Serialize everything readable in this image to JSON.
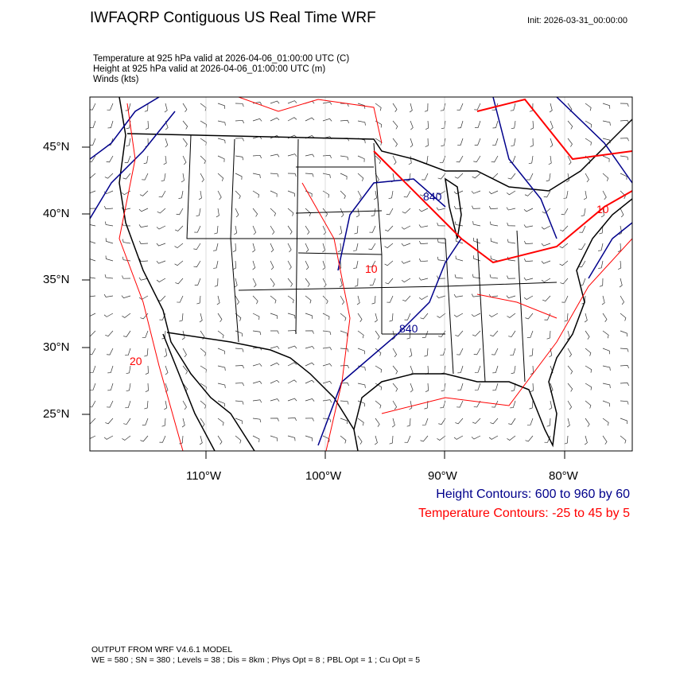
{
  "header": {
    "title": "IWFAQRP Contiguous US Real Time WRF",
    "init": "Init: 2026-03-31_00:00:00",
    "subtitles": [
      "Temperature at 925 hPa valid at 2026-04-06_01:00:00 UTC   (C)",
      "Height at 925 hPa valid at 2026-04-06_01:00:00 UTC   (m)",
      "Winds   (kts)"
    ]
  },
  "map": {
    "lat_labels": [
      "45°N",
      "40°N",
      "35°N",
      "30°N",
      "25°N"
    ],
    "lon_labels": [
      "110°W",
      "100°W",
      "90°W",
      "80°W"
    ],
    "contour_labels": {
      "height": [
        "840",
        "840"
      ],
      "temperature": [
        "10",
        "20",
        "10"
      ]
    },
    "colors": {
      "height": "#00008b",
      "temperature": "#ff0000",
      "boundaries": "#000000"
    }
  },
  "legend": {
    "height": "Height Contours: 600 to 960 by 60",
    "temperature": "Temperature Contours: -25 to 45 by 5"
  },
  "footer": {
    "line1": "OUTPUT FROM WRF V4.6.1 MODEL",
    "line2": "WE = 580 ; SN = 380 ; Levels = 38 ; Dis = 8km ; Phys Opt = 8 ; PBL Opt = 1 ; Cu Opt = 5"
  }
}
